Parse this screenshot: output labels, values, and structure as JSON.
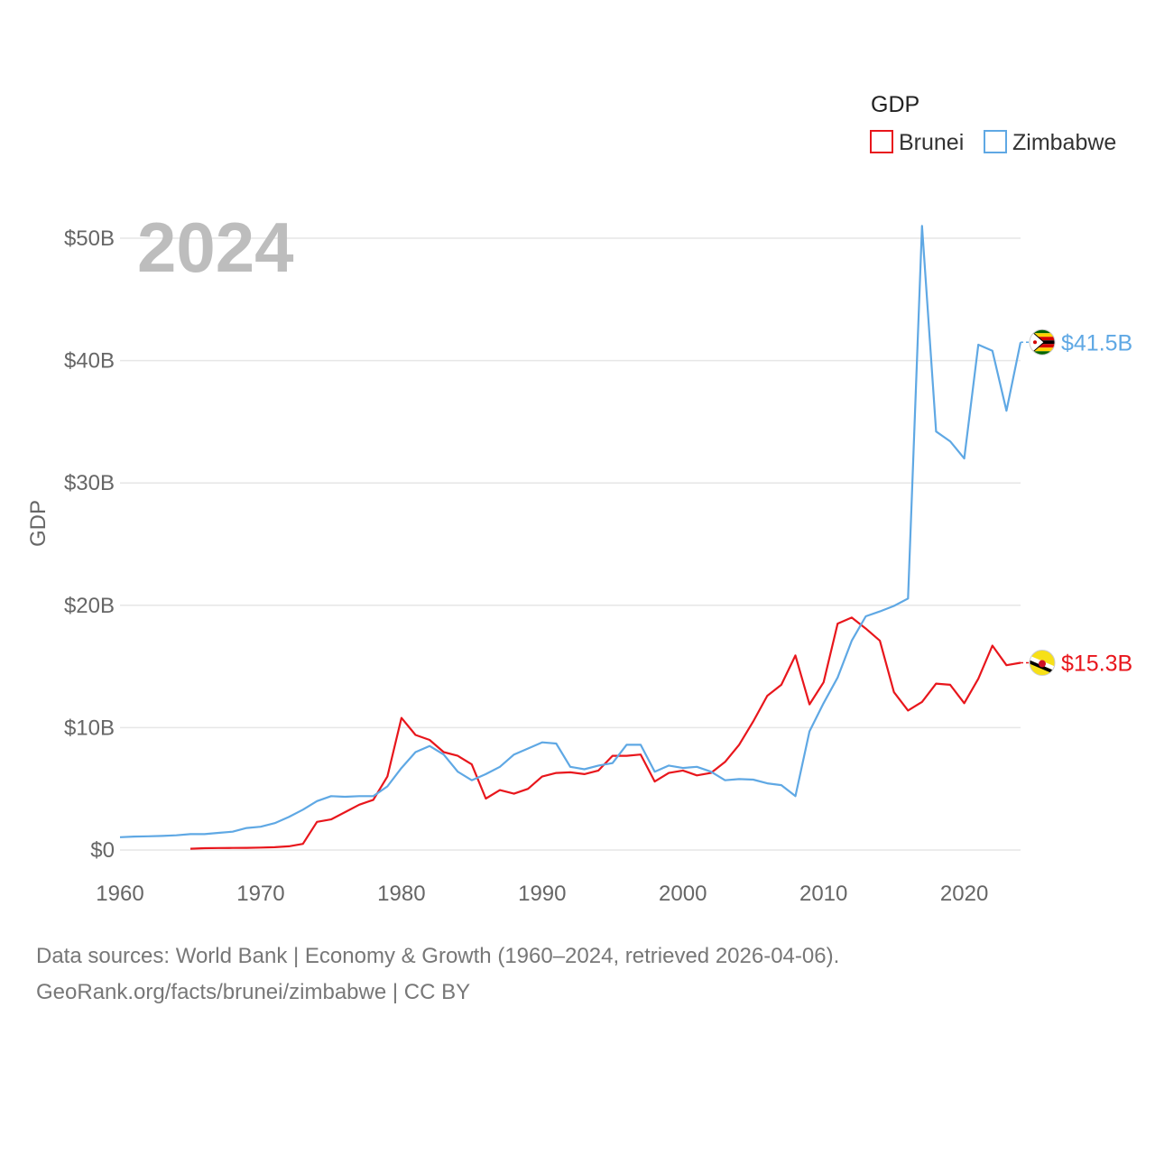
{
  "chart_data": {
    "type": "line",
    "title": "GDP",
    "year_watermark": "2024",
    "ylabel": "GDP",
    "xlabel": "",
    "xlim": [
      1960,
      2024
    ],
    "ylim": [
      0,
      50
    ],
    "y_unit": "billion USD",
    "x_ticks": [
      1960,
      1970,
      1980,
      1990,
      2000,
      2010,
      2020
    ],
    "x_tick_labels": [
      "1960",
      "1970",
      "1980",
      "1990",
      "2000",
      "2010",
      "2020"
    ],
    "y_ticks": [
      0,
      10,
      20,
      30,
      40,
      50
    ],
    "y_tick_labels": [
      "$0",
      "$10B",
      "$20B",
      "$30B",
      "$40B",
      "$50B"
    ],
    "grid": true,
    "legend": {
      "title": "GDP",
      "position": "top-right"
    },
    "series": [
      {
        "name": "Brunei",
        "color": "#e8161c",
        "end_label": "$15.3B",
        "flag_icon": "brunei-flag-icon",
        "x": [
          1965,
          1966,
          1967,
          1968,
          1969,
          1970,
          1971,
          1972,
          1973,
          1974,
          1975,
          1976,
          1977,
          1978,
          1979,
          1980,
          1981,
          1982,
          1983,
          1984,
          1985,
          1986,
          1987,
          1988,
          1989,
          1990,
          1991,
          1992,
          1993,
          1994,
          1995,
          1996,
          1997,
          1998,
          1999,
          2000,
          2001,
          2002,
          2003,
          2004,
          2005,
          2006,
          2007,
          2008,
          2009,
          2010,
          2011,
          2012,
          2013,
          2014,
          2015,
          2016,
          2017,
          2018,
          2019,
          2020,
          2021,
          2022,
          2023,
          2024
        ],
        "values": [
          0.1,
          0.15,
          0.16,
          0.17,
          0.18,
          0.2,
          0.23,
          0.3,
          0.5,
          2.3,
          2.5,
          3.1,
          3.7,
          4.1,
          6.0,
          10.8,
          9.4,
          9.0,
          8.0,
          7.7,
          7.0,
          4.2,
          4.9,
          4.6,
          5.0,
          6.0,
          6.3,
          6.35,
          6.2,
          6.5,
          7.7,
          7.7,
          7.8,
          5.6,
          6.3,
          6.5,
          6.1,
          6.3,
          7.2,
          8.6,
          10.5,
          12.6,
          13.5,
          15.9,
          11.9,
          13.7,
          18.5,
          19.0,
          18.1,
          17.1,
          12.9,
          11.4,
          12.1,
          13.6,
          13.5,
          12.0,
          14.0,
          16.7,
          15.1,
          15.3
        ]
      },
      {
        "name": "Zimbabwe",
        "color": "#5fa8e4",
        "end_label": "$41.5B",
        "flag_icon": "zimbabwe-flag-icon",
        "x": [
          1960,
          1961,
          1962,
          1963,
          1964,
          1965,
          1966,
          1967,
          1968,
          1969,
          1970,
          1971,
          1972,
          1973,
          1974,
          1975,
          1976,
          1977,
          1978,
          1979,
          1980,
          1981,
          1982,
          1983,
          1984,
          1985,
          1986,
          1987,
          1988,
          1989,
          1990,
          1991,
          1992,
          1993,
          1994,
          1995,
          1996,
          1997,
          1998,
          1999,
          2000,
          2001,
          2002,
          2003,
          2004,
          2005,
          2006,
          2007,
          2008,
          2009,
          2010,
          2011,
          2012,
          2013,
          2014,
          2015,
          2016,
          2017,
          2018,
          2019,
          2020,
          2021,
          2022,
          2023,
          2024
        ],
        "values": [
          1.05,
          1.1,
          1.12,
          1.15,
          1.2,
          1.3,
          1.3,
          1.4,
          1.5,
          1.8,
          1.9,
          2.2,
          2.7,
          3.3,
          4.0,
          4.4,
          4.35,
          4.4,
          4.4,
          5.2,
          6.7,
          8.0,
          8.5,
          7.8,
          6.4,
          5.7,
          6.2,
          6.8,
          7.8,
          8.3,
          8.8,
          8.7,
          6.8,
          6.6,
          6.9,
          7.1,
          8.6,
          8.6,
          6.4,
          6.9,
          6.7,
          6.8,
          6.4,
          5.7,
          5.8,
          5.75,
          5.45,
          5.3,
          4.4,
          9.7,
          12.0,
          14.1,
          17.1,
          19.1,
          19.5,
          19.95,
          20.55,
          51.0,
          34.2,
          33.4,
          32.0,
          41.3,
          40.8,
          35.9,
          41.5
        ]
      }
    ]
  },
  "footer": {
    "source_line1": "Data sources: World Bank | Economy & Growth (1960–2024, retrieved 2026-04-06).",
    "source_line2": "GeoRank.org/facts/brunei/zimbabwe | CC BY"
  }
}
